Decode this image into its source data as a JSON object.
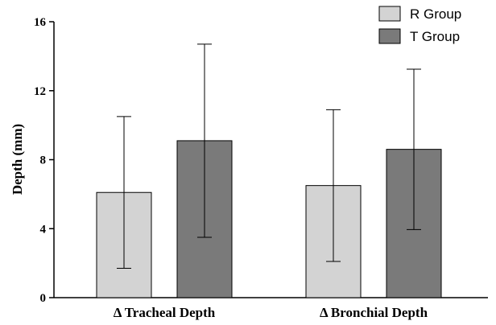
{
  "chart_data": {
    "type": "bar",
    "title": "",
    "xlabel": "",
    "ylabel": "Depth (mm)",
    "ylim": [
      0,
      16
    ],
    "yticks": [
      "0",
      "4",
      "8",
      "12",
      "16"
    ],
    "categories": [
      "Δ Tracheal Depth",
      "Δ Bronchial Depth"
    ],
    "series": [
      {
        "name": "R Group",
        "color": "#d3d3d3",
        "values": [
          6.1,
          6.5
        ],
        "error": [
          4.4,
          4.4
        ]
      },
      {
        "name": "T Group",
        "color": "#7a7a7a",
        "values": [
          9.1,
          8.6
        ],
        "error": [
          5.6,
          4.65
        ]
      }
    ],
    "legend_position": "top-right",
    "grid": false
  }
}
